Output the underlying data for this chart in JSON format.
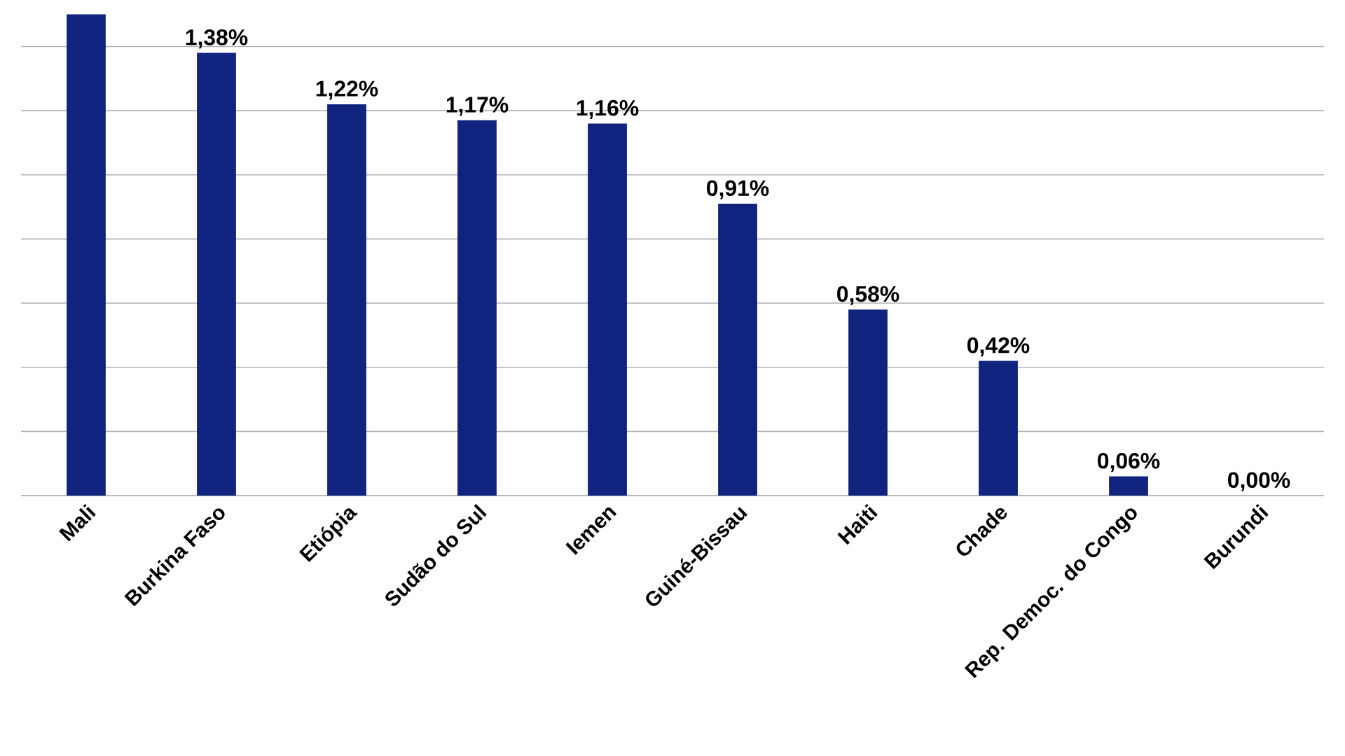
{
  "chart_data": {
    "type": "bar",
    "categories": [
      "Mali",
      "Burkina Faso",
      "Etiópia",
      "Sudão do Sul",
      "Iemen",
      "Guiné-Bissau",
      "Haiti",
      "Chade",
      "Rep. Democ. do Congo",
      "Burundi"
    ],
    "values": [
      1.5,
      1.38,
      1.22,
      1.17,
      1.16,
      0.91,
      0.58,
      0.42,
      0.06,
      0.0
    ],
    "value_labels": [
      null,
      "1,38%",
      "1,22%",
      "1,17%",
      "1,16%",
      "0,91%",
      "0,58%",
      "0,42%",
      "0,06%",
      "0,00%"
    ],
    "color": "#10247f",
    "grid": "y",
    "tick_labels": "x"
  }
}
